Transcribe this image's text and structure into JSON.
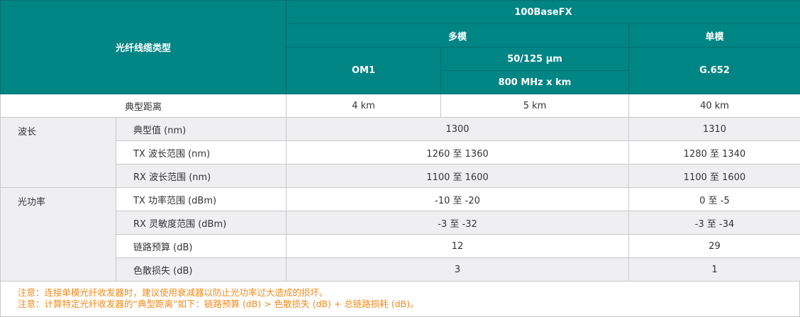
{
  "header": {
    "fiber_type": "光纤线缆类型",
    "standard": "100BaseFX",
    "multimode": "多模",
    "singlemode": "单模",
    "om1": "OM1",
    "mm_core": "50/125 µm",
    "mm_bw": "800 MHz x km",
    "g652": "G.652"
  },
  "typical_distance": {
    "label": "典型距离",
    "om1": "4 km",
    "mm": "5 km",
    "sm": "40 km"
  },
  "groups": {
    "wavelength": "波长",
    "optical_power": "光功率"
  },
  "rows": [
    {
      "label": "典型值 (nm)",
      "mm": "1300",
      "sm": "1310"
    },
    {
      "label": "TX 波长范围 (nm)",
      "mm": "1260 至 1360",
      "sm": "1280 至 1340"
    },
    {
      "label": "RX 波长范围 (nm)",
      "mm": "1100 至 1600",
      "sm": "1100 至 1600"
    },
    {
      "label": "TX 功率范围 (dBm)",
      "mm": "-10 至 -20",
      "sm": "0 至 -5"
    },
    {
      "label": "RX 灵敏度范围 (dBm)",
      "mm": "-3 至 -32",
      "sm": "-3 至 -34"
    },
    {
      "label": "链路预算 (dB)",
      "mm": "12",
      "sm": "29"
    },
    {
      "label": "色散损失 (dB)",
      "mm": "3",
      "sm": "1"
    }
  ],
  "notes": [
    "注意：连接单模光纤收发器时，建议使用衰减器以防止光功率过大造成的损坏。",
    "注意：计算特定光纤收发器的“典型距离”如下：链路预算 (dB) > 色散损失 (dB) + 总链路损耗 (dB)。"
  ],
  "colors": {
    "header": "#008585",
    "note": "#f08a1c"
  }
}
